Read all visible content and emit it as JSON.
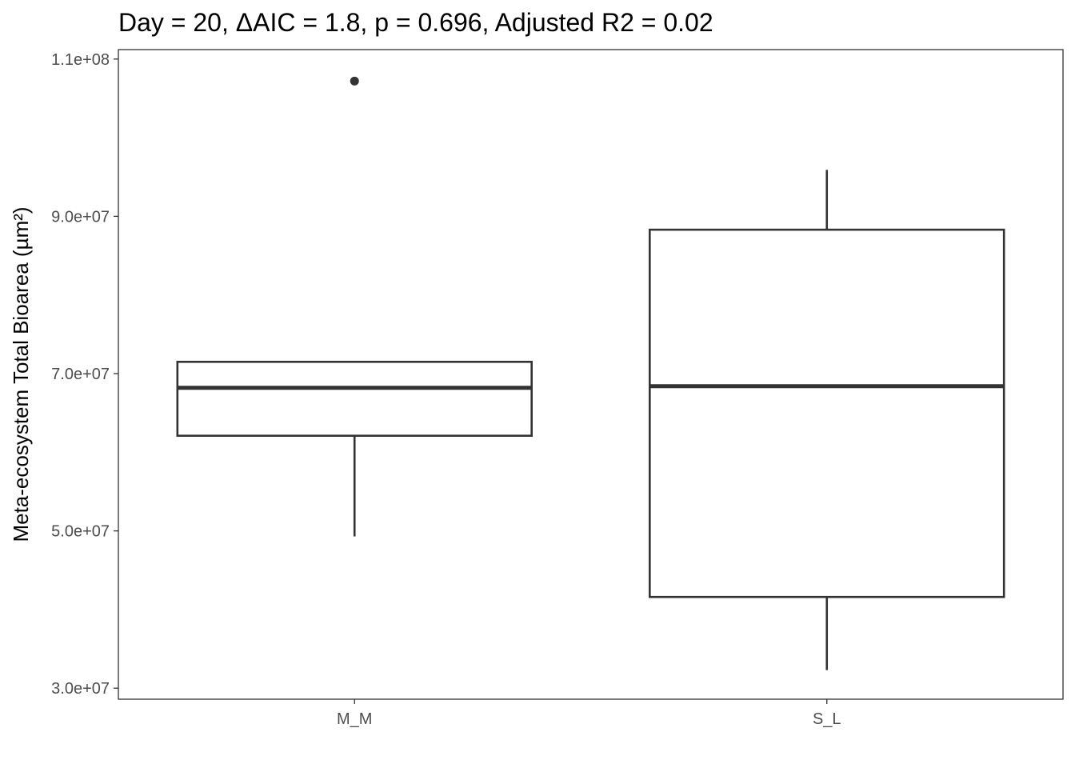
{
  "chart_data": {
    "type": "boxplot",
    "title": "Day = 20, ΔAIC = 1.8, p = 0.696, Adjusted R2 = 0.02",
    "xlabel": "",
    "ylabel": "Meta-ecosystem Total Bioarea (µm²)",
    "ylim": [
      28600000,
      111200000
    ],
    "yticks": [
      {
        "value": 30000000,
        "label": "3.0e+07"
      },
      {
        "value": 50000000,
        "label": "5.0e+07"
      },
      {
        "value": 70000000,
        "label": "7.0e+07"
      },
      {
        "value": 90000000,
        "label": "9.0e+07"
      },
      {
        "value": 110000000,
        "label": "1.1e+08"
      }
    ],
    "categories": [
      "M_M",
      "S_L"
    ],
    "boxes": [
      {
        "category": "M_M",
        "whisker_low": 49300000,
        "q1": 62100000,
        "median": 68200000,
        "q3": 71500000,
        "whisker_high": 71500000,
        "outliers": [
          107200000
        ]
      },
      {
        "category": "S_L",
        "whisker_low": 32300000,
        "q1": 41600000,
        "median": 68400000,
        "q3": 88300000,
        "whisker_high": 95900000,
        "outliers": []
      }
    ],
    "grid": false,
    "legend": "none",
    "colors": {
      "box_line": "#333333",
      "box_fill": "#ffffff",
      "outlier": "#333333",
      "panel_border": "#333333",
      "tick_label": "#4d4d4d",
      "title": "#000000"
    }
  }
}
